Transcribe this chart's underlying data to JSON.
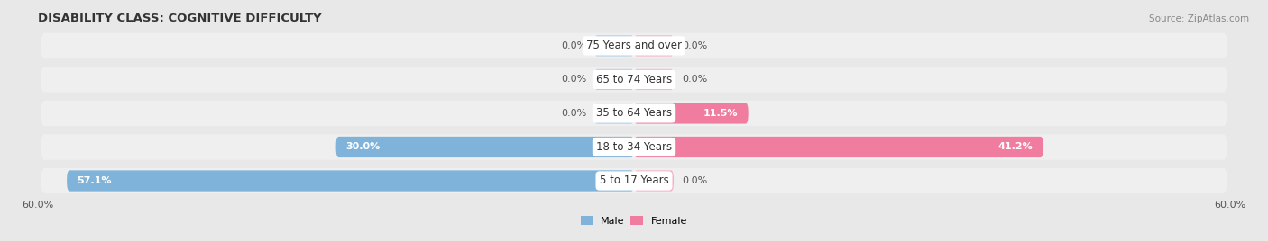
{
  "title": "DISABILITY CLASS: COGNITIVE DIFFICULTY",
  "source": "Source: ZipAtlas.com",
  "categories": [
    "5 to 17 Years",
    "18 to 34 Years",
    "35 to 64 Years",
    "65 to 74 Years",
    "75 Years and over"
  ],
  "male_values": [
    57.1,
    30.0,
    0.0,
    0.0,
    0.0
  ],
  "female_values": [
    0.0,
    41.2,
    11.5,
    0.0,
    0.0
  ],
  "male_color": "#7fb3d9",
  "female_color": "#f07ca0",
  "male_color_light": "#aecde8",
  "female_color_light": "#f5b0c8",
  "male_label": "Male",
  "female_label": "Female",
  "max_val": 60.0,
  "stub_val": 4.0,
  "bg_color": "#e8e8e8",
  "row_bg_color": "#e0e0e0",
  "row_inner_color": "#efefef",
  "title_fontsize": 9.5,
  "label_fontsize": 8.0,
  "axis_label_fontsize": 8.0,
  "category_fontsize": 8.5,
  "source_fontsize": 7.5
}
